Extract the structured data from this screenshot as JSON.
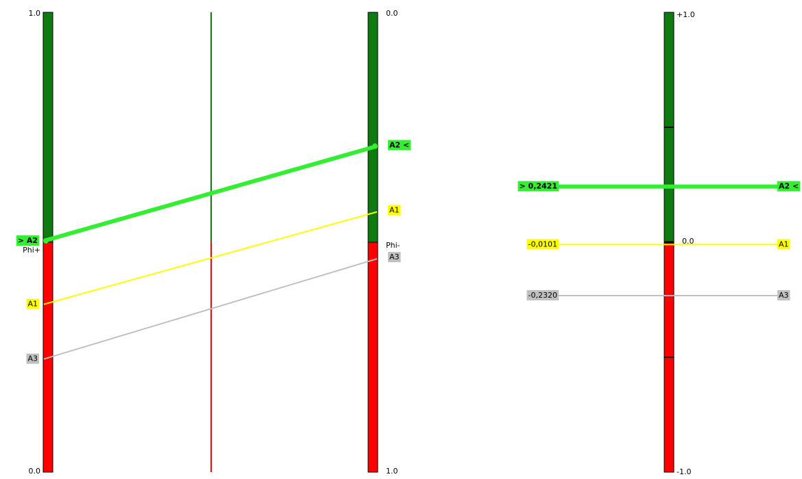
{
  "colors": {
    "positive": "#0f7a0f",
    "negative": "#ff0000",
    "bar_border": "#000000",
    "A2": "#33ee33",
    "A1": "#ffff00",
    "A3": "#c0c0c0"
  },
  "chart_data": [
    {
      "type": "line",
      "title": "",
      "left_axis": {
        "name": "Phi+",
        "top_label": "1.0",
        "bottom_label": "0.0",
        "range": [
          0,
          1
        ],
        "split": 0.5
      },
      "right_axis": {
        "name": "Phi-",
        "top_label": "0.0",
        "bottom_label": "1.0",
        "range": [
          0,
          1
        ],
        "split": 0.5
      },
      "series": [
        {
          "name": "A2",
          "phi_plus": 0.503,
          "phi_minus": 0.291,
          "emphasis": true,
          "left_label": "> A2",
          "right_label": "A2 <"
        },
        {
          "name": "A1",
          "phi_plus": 0.365,
          "phi_minus": 0.434,
          "emphasis": false,
          "left_label": "A1",
          "right_label": "A1"
        },
        {
          "name": "A3",
          "phi_plus": 0.246,
          "phi_minus": 0.536,
          "emphasis": false,
          "left_label": "A3",
          "right_label": "A3"
        }
      ]
    },
    {
      "type": "scatter",
      "title": "",
      "axis": {
        "top_label": "+1.0",
        "zero_label": "0.0",
        "bottom_label": "-1.0",
        "range": [
          -1,
          1
        ],
        "ticks": [
          0.5,
          -0.5
        ]
      },
      "series": [
        {
          "name": "A2",
          "phi": 0.2421,
          "left_label": "> 0,2421",
          "right_label": "A2 <",
          "emphasis": true
        },
        {
          "name": "A1",
          "phi": -0.0101,
          "left_label": "-0,0101",
          "right_label": "A1",
          "emphasis": false
        },
        {
          "name": "A3",
          "phi": -0.232,
          "left_label": "-0,2320",
          "right_label": "A3",
          "emphasis": false
        }
      ]
    }
  ]
}
